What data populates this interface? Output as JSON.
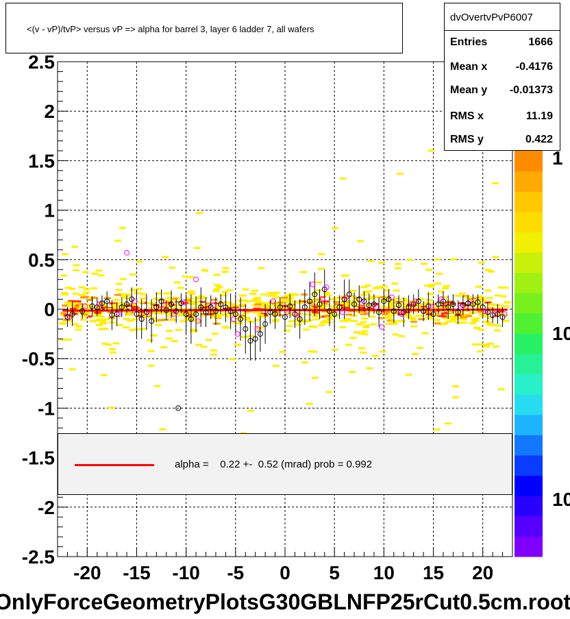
{
  "chart_data": {
    "type": "scatter",
    "title": "<(v - vP)/tvP> versus   vP => alpha for barrel 3, layer 6 ladder 7, all wafers",
    "xlabel": "",
    "ylabel": "",
    "xlim": [
      -23,
      23
    ],
    "ylim": [
      -2.5,
      2.5
    ],
    "xticks": [
      "-20",
      "-15",
      "-10",
      "-5",
      "0",
      "5",
      "10",
      "15",
      "20"
    ],
    "xtick_values": [
      -20,
      -15,
      -10,
      -5,
      0,
      5,
      10,
      15,
      20
    ],
    "yticks": [
      "2.5",
      "2",
      "1.5",
      "1",
      "0.5",
      "0",
      "-0.5",
      "-1",
      "-1.5",
      "-2",
      "-2.5"
    ],
    "ytick_values": [
      2.5,
      2,
      1.5,
      1,
      0.5,
      0,
      -0.5,
      -1,
      -1.5,
      -2,
      -2.5
    ],
    "grid": true,
    "colz_labels": [
      "1",
      "10",
      "10"
    ],
    "fit_line": {
      "slope": 0.00022,
      "intercept": -0.01,
      "color": "#ff0000"
    },
    "points_black": [
      {
        "x": -22,
        "y": -0.08,
        "err": 0.1
      },
      {
        "x": -21.5,
        "y": -0.05,
        "err": 0.12
      },
      {
        "x": -20.5,
        "y": -0.02,
        "err": 0.08
      },
      {
        "x": -19.5,
        "y": 0.03,
        "err": 0.1
      },
      {
        "x": -19,
        "y": 0.02,
        "err": 0.09
      },
      {
        "x": -18.5,
        "y": 0.06,
        "err": 0.08
      },
      {
        "x": -18,
        "y": 0.08,
        "err": 0.1
      },
      {
        "x": -17.5,
        "y": -0.06,
        "err": 0.15
      },
      {
        "x": -17,
        "y": -0.05,
        "err": 0.12
      },
      {
        "x": -16.5,
        "y": 0.02,
        "err": 0.1
      },
      {
        "x": -16,
        "y": 0.05,
        "err": 0.09
      },
      {
        "x": -15.5,
        "y": 0.1,
        "err": 0.12
      },
      {
        "x": -15,
        "y": -0.05,
        "err": 0.25
      },
      {
        "x": -14.5,
        "y": -0.1,
        "err": 0.2
      },
      {
        "x": -14,
        "y": -0.03,
        "err": 0.18
      },
      {
        "x": -13.5,
        "y": -0.12,
        "err": 0.22
      },
      {
        "x": -13,
        "y": 0.02,
        "err": 0.15
      },
      {
        "x": -12.5,
        "y": 0.08,
        "err": 0.12
      },
      {
        "x": -12,
        "y": -0.01,
        "err": 0.1
      },
      {
        "x": -11.5,
        "y": 0.05,
        "err": 0.14
      },
      {
        "x": -11,
        "y": -0.02,
        "err": 0.12
      },
      {
        "x": -10.5,
        "y": 0.06,
        "err": 0.1
      },
      {
        "x": -10,
        "y": -0.05,
        "err": 0.2
      },
      {
        "x": -9.5,
        "y": -0.1,
        "err": 0.25
      },
      {
        "x": -9,
        "y": -0.05,
        "err": 0.18
      },
      {
        "x": -8.5,
        "y": 0.02,
        "err": 0.2
      },
      {
        "x": -8,
        "y": -0.03,
        "err": 0.15
      },
      {
        "x": -7.5,
        "y": 0.02,
        "err": 0.12
      },
      {
        "x": -7,
        "y": -0.02,
        "err": 0.14
      },
      {
        "x": -6.5,
        "y": 0.05,
        "err": 0.1
      },
      {
        "x": -6,
        "y": 0.02,
        "err": 0.15
      },
      {
        "x": -5.5,
        "y": -0.02,
        "err": 0.18
      },
      {
        "x": -5,
        "y": -0.05,
        "err": 0.2
      },
      {
        "x": -4.5,
        "y": -0.1,
        "err": 0.22
      },
      {
        "x": -4,
        "y": -0.2,
        "err": 0.25
      },
      {
        "x": -3.5,
        "y": -0.32,
        "err": 0.2
      },
      {
        "x": -3,
        "y": -0.3,
        "err": 0.22
      },
      {
        "x": -2.5,
        "y": -0.25,
        "err": 0.18
      },
      {
        "x": -2,
        "y": -0.15,
        "err": 0.2
      },
      {
        "x": -1.5,
        "y": -0.03,
        "err": 0.12
      },
      {
        "x": -1,
        "y": -0.05,
        "err": 0.15
      },
      {
        "x": -0.5,
        "y": 0.02,
        "err": 0.1
      },
      {
        "x": 0,
        "y": -0.08,
        "err": 0.15
      },
      {
        "x": 0.5,
        "y": 0.03,
        "err": 0.12
      },
      {
        "x": 1,
        "y": -0.05,
        "err": 0.14
      },
      {
        "x": 1.5,
        "y": -0.1,
        "err": 0.2
      },
      {
        "x": 2,
        "y": 0.02,
        "err": 0.18
      },
      {
        "x": 2.5,
        "y": 0.08,
        "err": 0.2
      },
      {
        "x": 3,
        "y": 0.15,
        "err": 0.22
      },
      {
        "x": 3.5,
        "y": 0.05,
        "err": 0.15
      },
      {
        "x": 4,
        "y": 0.2,
        "err": 0.2
      },
      {
        "x": 4.5,
        "y": -0.02,
        "err": 0.15
      },
      {
        "x": 5,
        "y": -0.05,
        "err": 0.18
      },
      {
        "x": 5.5,
        "y": 0.02,
        "err": 0.12
      },
      {
        "x": 6,
        "y": 0.1,
        "err": 0.2
      },
      {
        "x": 6.5,
        "y": 0.15,
        "err": 0.15
      },
      {
        "x": 7,
        "y": 0.05,
        "err": 0.12
      },
      {
        "x": 7.5,
        "y": 0.1,
        "err": 0.14
      },
      {
        "x": 8,
        "y": 0.08,
        "err": 0.1
      },
      {
        "x": 8.5,
        "y": 0.04,
        "err": 0.12
      },
      {
        "x": 9,
        "y": 0.05,
        "err": 0.1
      },
      {
        "x": 9.5,
        "y": -0.03,
        "err": 0.15
      },
      {
        "x": 10,
        "y": 0.08,
        "err": 0.12
      },
      {
        "x": 10.5,
        "y": 0.1,
        "err": 0.1
      },
      {
        "x": 11,
        "y": -0.02,
        "err": 0.12
      },
      {
        "x": 11.5,
        "y": 0.04,
        "err": 0.1
      },
      {
        "x": 12,
        "y": -0.03,
        "err": 0.15
      },
      {
        "x": 12.5,
        "y": 0.02,
        "err": 0.12
      },
      {
        "x": 13,
        "y": 0.05,
        "err": 0.1
      },
      {
        "x": 13.5,
        "y": 0.08,
        "err": 0.12
      },
      {
        "x": 14,
        "y": -0.02,
        "err": 0.1
      },
      {
        "x": 14.5,
        "y": 0.03,
        "err": 0.14
      },
      {
        "x": 15,
        "y": -0.05,
        "err": 0.12
      },
      {
        "x": 15.5,
        "y": 0.05,
        "err": 0.1
      },
      {
        "x": 16,
        "y": 0.08,
        "err": 0.1
      },
      {
        "x": 16.5,
        "y": 0.02,
        "err": 0.12
      },
      {
        "x": 17,
        "y": 0.05,
        "err": 0.1
      },
      {
        "x": 17.5,
        "y": -0.03,
        "err": 0.12
      },
      {
        "x": 18,
        "y": 0.04,
        "err": 0.1
      },
      {
        "x": 18.5,
        "y": 0.06,
        "err": 0.08
      },
      {
        "x": 19,
        "y": 0.05,
        "err": 0.1
      },
      {
        "x": 19.5,
        "y": 0.07,
        "err": 0.08
      },
      {
        "x": 20,
        "y": 0.02,
        "err": 0.1
      },
      {
        "x": 20.5,
        "y": -0.03,
        "err": 0.1
      },
      {
        "x": 21,
        "y": -0.06,
        "err": 0.08
      },
      {
        "x": 21.5,
        "y": -0.05,
        "err": 0.1
      },
      {
        "x": 22,
        "y": -0.08,
        "err": 0.1
      },
      {
        "x": -10.8,
        "y": -1.0,
        "err": 0
      }
    ],
    "points_magenta": [
      {
        "x": -16,
        "y": 0.57
      },
      {
        "x": -9,
        "y": 0.3
      },
      {
        "x": -21.8,
        "y": -0.08
      },
      {
        "x": -20.2,
        "y": 0.03
      },
      {
        "x": -18.8,
        "y": 0.05
      },
      {
        "x": -16.8,
        "y": -0.05
      },
      {
        "x": -15.2,
        "y": 0.08
      },
      {
        "x": -13.8,
        "y": -0.05
      },
      {
        "x": -12.2,
        "y": 0.04
      },
      {
        "x": -11.2,
        "y": -0.05
      },
      {
        "x": -10.2,
        "y": 0.07
      },
      {
        "x": -8.8,
        "y": -0.12
      },
      {
        "x": -7.2,
        "y": 0.04
      },
      {
        "x": -5.2,
        "y": -0.1
      },
      {
        "x": -4.8,
        "y": -0.25
      },
      {
        "x": -2.8,
        "y": -0.2
      },
      {
        "x": -1.2,
        "y": 0.08
      },
      {
        "x": 0.2,
        "y": -0.03
      },
      {
        "x": 1.2,
        "y": -0.06
      },
      {
        "x": 2.8,
        "y": 0.25
      },
      {
        "x": 3.8,
        "y": 0.1
      },
      {
        "x": 4.2,
        "y": 0.22
      },
      {
        "x": 5.8,
        "y": -0.03
      },
      {
        "x": 6.2,
        "y": 0.12
      },
      {
        "x": 7.8,
        "y": 0.06
      },
      {
        "x": 9.2,
        "y": 0.02
      },
      {
        "x": 9.8,
        "y": -0.18
      },
      {
        "x": 10.8,
        "y": 0.12
      },
      {
        "x": 11.8,
        "y": -0.05
      },
      {
        "x": 12.8,
        "y": 0.05
      },
      {
        "x": 13.2,
        "y": 0.08
      },
      {
        "x": 14.8,
        "y": 0.02
      },
      {
        "x": 15.8,
        "y": 0.1
      },
      {
        "x": 17.8,
        "y": 0.02
      },
      {
        "x": 18.8,
        "y": 0.08
      },
      {
        "x": 20.2,
        "y": -0.02
      },
      {
        "x": 21.2,
        "y": -0.05
      },
      {
        "x": 22.2,
        "y": -0.05
      }
    ]
  },
  "stats": {
    "name": "dvOvertvPvP6007",
    "rows": [
      {
        "label": "Entries",
        "value": "1666"
      },
      {
        "label": "Mean x",
        "value": "-0.4176"
      },
      {
        "label": "Mean y",
        "value": "-0.01373"
      },
      {
        "label": "RMS x",
        "value": "11.19"
      },
      {
        "label": "RMS y",
        "value": "0.422"
      }
    ]
  },
  "legend": {
    "text": "alpha =    0.22 +-  0.52 (mrad) prob = 0.992",
    "line_color": "#ff0000"
  },
  "footer": "OnlyForceGeometryPlotsG30GBLNFP25rCut0.5cm.root",
  "palette": [
    "#7f00ff",
    "#5500ff",
    "#2a00ff",
    "#0000ff",
    "#0a3cff",
    "#1478ff",
    "#1eb4ff",
    "#28dcf0",
    "#28f0c8",
    "#28f096",
    "#28f064",
    "#50f032",
    "#78f01e",
    "#a0f014",
    "#c8f00a",
    "#f0f000",
    "#ffdc00",
    "#ffc800",
    "#ffaa00",
    "#ff8c00"
  ]
}
